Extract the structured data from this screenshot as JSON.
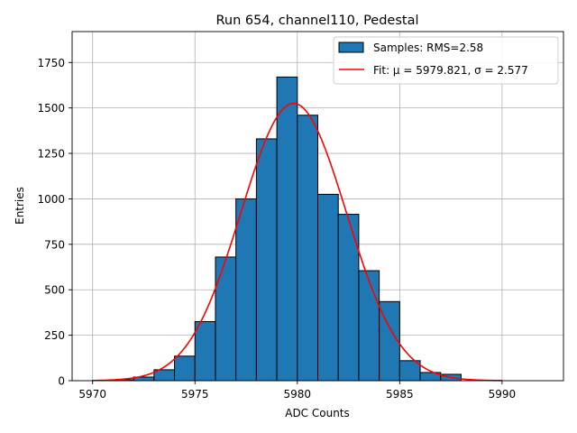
{
  "chart_data": {
    "type": "bar",
    "title": "Run 654, channel110, Pedestal",
    "xlabel": "ADC Counts",
    "ylabel": "Entries",
    "xlim": [
      5969,
      5993
    ],
    "ylim": [
      0,
      1920
    ],
    "xticks": [
      5970,
      5975,
      5980,
      5985,
      5990
    ],
    "yticks": [
      0,
      250,
      500,
      750,
      1000,
      1250,
      1500,
      1750
    ],
    "grid": true,
    "legend_position": "top-right",
    "bin_width": 1,
    "series": [
      {
        "name": "Samples: RMS=2.58",
        "kind": "histogram",
        "color": "#1f77b4",
        "edge_color": "#000000",
        "bins": [
          {
            "x": 5970,
            "count": 2
          },
          {
            "x": 5971,
            "count": 5
          },
          {
            "x": 5972,
            "count": 20
          },
          {
            "x": 5973,
            "count": 60
          },
          {
            "x": 5974,
            "count": 135
          },
          {
            "x": 5975,
            "count": 325
          },
          {
            "x": 5976,
            "count": 680
          },
          {
            "x": 5977,
            "count": 1000
          },
          {
            "x": 5978,
            "count": 1330
          },
          {
            "x": 5979,
            "count": 1670
          },
          {
            "x": 5980,
            "count": 1460
          },
          {
            "x": 5981,
            "count": 1025
          },
          {
            "x": 5982,
            "count": 915
          },
          {
            "x": 5983,
            "count": 605
          },
          {
            "x": 5984,
            "count": 435
          },
          {
            "x": 5985,
            "count": 110
          },
          {
            "x": 5986,
            "count": 45
          },
          {
            "x": 5987,
            "count": 35
          }
        ]
      },
      {
        "name": "Fit: μ = 5979.821, σ = 2.577",
        "kind": "gaussian-fit",
        "color": "#ff0000",
        "mu": 5979.821,
        "sigma": 2.577,
        "amplitude": 1525,
        "x_range": [
          5970,
          5990
        ]
      }
    ]
  }
}
